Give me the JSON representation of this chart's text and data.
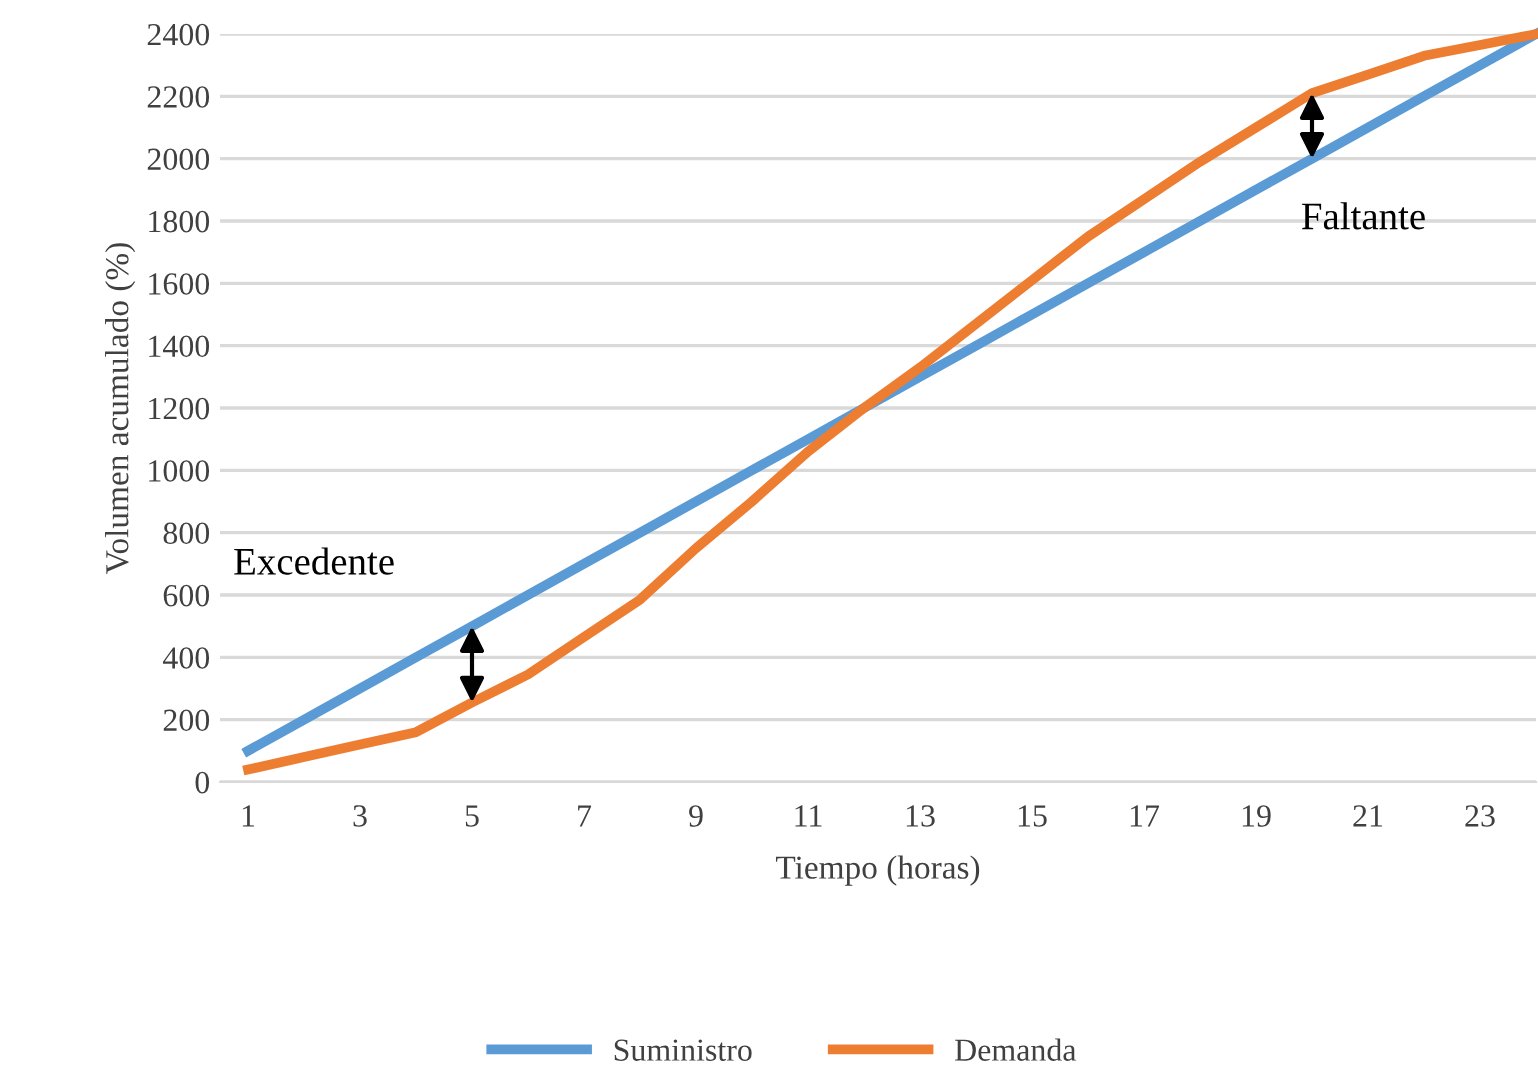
{
  "chart_data": {
    "type": "line",
    "xlabel": "Tiempo (horas)",
    "ylabel": "Volumen acumulado (%)",
    "x": [
      1,
      2,
      3,
      4,
      5,
      6,
      7,
      8,
      9,
      10,
      11,
      12,
      13,
      14,
      15,
      16,
      17,
      18,
      19,
      20,
      21,
      22,
      23,
      24
    ],
    "series": [
      {
        "name": "Suministro",
        "color": "#5b9bd5",
        "values": [
          100,
          200,
          300,
          400,
          500,
          600,
          700,
          800,
          900,
          1000,
          1100,
          1200,
          1300,
          1400,
          1500,
          1600,
          1700,
          1800,
          1900,
          2000,
          2100,
          2200,
          2300,
          2400
        ]
      },
      {
        "name": "Demanda",
        "color": "#ed7d31",
        "values": [
          40,
          80,
          120,
          160,
          255,
          345,
          465,
          585,
          750,
          900,
          1060,
          1200,
          1330,
          1470,
          1610,
          1750,
          1870,
          1990,
          2100,
          2210,
          2270,
          2330,
          2365,
          2400
        ]
      }
    ],
    "xlim": [
      0.5,
      24
    ],
    "xticks": [
      1,
      3,
      5,
      7,
      9,
      11,
      13,
      15,
      17,
      19,
      21,
      23
    ],
    "ylim": [
      0,
      2400
    ],
    "yticks": [
      0,
      200,
      400,
      600,
      800,
      1000,
      1200,
      1400,
      1600,
      1800,
      2000,
      2200,
      2400
    ],
    "grid": "y",
    "legend": "bottom",
    "marker": "none",
    "line_style": "solid",
    "annotations": [
      {
        "text": "Excedente",
        "x": 5,
        "y": 500
      },
      {
        "text": "Faltante",
        "x": 20,
        "y": 2000
      }
    ]
  }
}
